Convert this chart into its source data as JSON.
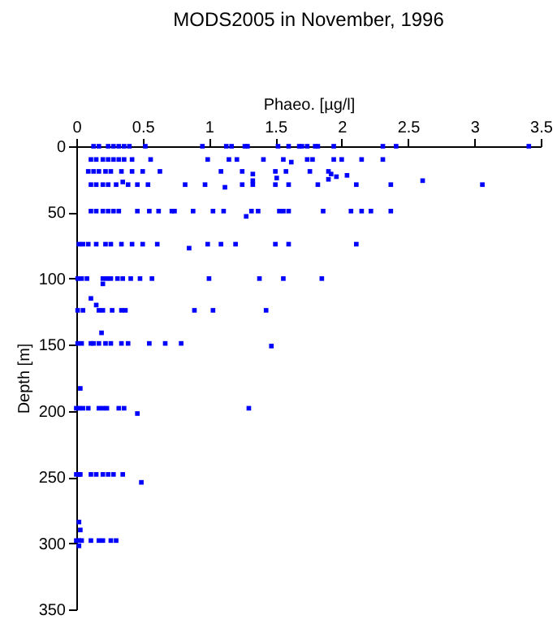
{
  "chart_data": {
    "type": "scatter",
    "title": "MODS2005 in November, 1996",
    "xlabel": "Phaeo. [µg/l]",
    "ylabel": "Depth [m]",
    "xlim": [
      0,
      3.5
    ],
    "xticks": [
      0,
      0.5,
      1,
      1.5,
      2,
      2.5,
      3,
      3.5
    ],
    "ylim": [
      350,
      0
    ],
    "yticks": [
      0,
      50,
      100,
      150,
      200,
      250,
      300,
      350
    ],
    "marker": "square",
    "grid": false,
    "series": [
      {
        "color": "#0000ff",
        "x": [
          0.13,
          0.17,
          0.24,
          0.28,
          0.32,
          0.36,
          0.4,
          0.52,
          0.95,
          1.13,
          1.17,
          1.27,
          1.29,
          1.52,
          1.6,
          1.68,
          1.7,
          1.74,
          1.8,
          1.82,
          1.94,
          2.31,
          2.41,
          3.41,
          0.11,
          0.15,
          0.2,
          0.24,
          0.28,
          0.32,
          0.36,
          0.42,
          0.56,
          0.99,
          1.15,
          1.21,
          1.41,
          1.56,
          1.62,
          1.74,
          1.78,
          1.94,
          2.0,
          2.15,
          2.31,
          0.09,
          0.13,
          0.17,
          0.22,
          0.26,
          0.34,
          0.42,
          0.5,
          0.63,
          1.09,
          1.25,
          1.33,
          1.5,
          1.58,
          1.76,
          1.9,
          1.92,
          1.96,
          2.04,
          2.61,
          3.06,
          1.33,
          1.51,
          1.9,
          0.11,
          0.15,
          0.2,
          0.24,
          0.3,
          0.35,
          0.39,
          0.46,
          0.54,
          0.82,
          0.97,
          1.12,
          1.25,
          1.33,
          1.5,
          1.6,
          1.82,
          2.11,
          2.37,
          0.11,
          0.15,
          0.2,
          0.24,
          0.28,
          0.32,
          0.46,
          0.55,
          0.62,
          0.72,
          0.74,
          0.88,
          1.03,
          1.11,
          1.28,
          1.32,
          1.37,
          1.53,
          1.56,
          1.6,
          1.86,
          2.07,
          2.15,
          2.22,
          2.37,
          0.02,
          0.05,
          0.09,
          0.15,
          0.22,
          0.26,
          0.34,
          0.42,
          0.5,
          0.61,
          0.85,
          0.99,
          1.09,
          1.2,
          1.5,
          1.6,
          2.11,
          0.01,
          0.04,
          0.08,
          0.2,
          0.23,
          0.26,
          0.31,
          0.35,
          0.41,
          0.48,
          0.57,
          1.0,
          1.38,
          1.56,
          1.85,
          0.2,
          0.11,
          0.15,
          0.01,
          0.05,
          0.17,
          0.2,
          0.27,
          0.34,
          0.37,
          0.89,
          1.03,
          1.43,
          0.19,
          0.01,
          0.04,
          0.11,
          0.13,
          0.17,
          0.22,
          0.26,
          0.34,
          0.39,
          0.55,
          0.67,
          0.79,
          1.47,
          0.03,
          0,
          0.02,
          0.05,
          0.09,
          0.17,
          0.2,
          0.23,
          0.32,
          0.36,
          0.46,
          1.3,
          0,
          0.02,
          0.03,
          0.11,
          0.15,
          0.2,
          0.24,
          0.28,
          0.35,
          0.49,
          0.02,
          0.03,
          0,
          0.02,
          0.04,
          0.11,
          0.17,
          0.2,
          0.26,
          0.3,
          0.02
        ],
        "values": [
          0,
          0,
          0,
          0,
          0,
          0,
          0,
          0,
          0,
          0,
          0,
          0,
          0,
          0,
          0,
          0,
          0,
          0,
          0,
          0,
          0,
          0,
          0,
          0,
          10,
          10,
          10,
          10,
          10,
          10,
          10,
          10,
          10,
          10,
          10,
          10,
          10,
          10,
          12,
          10,
          10,
          10,
          10,
          10,
          10,
          19,
          19,
          19,
          19,
          19,
          19,
          19,
          19,
          19,
          19,
          19,
          21,
          19,
          19,
          19,
          19,
          21,
          23,
          22,
          26,
          29,
          26,
          24,
          25,
          29,
          29,
          29,
          29,
          29,
          27,
          29,
          29,
          29,
          29,
          29,
          31,
          29,
          29,
          29,
          29,
          29,
          29,
          29,
          49,
          49,
          49,
          49,
          49,
          49,
          49,
          49,
          49,
          49,
          49,
          49,
          49,
          49,
          53,
          49,
          49,
          49,
          49,
          49,
          49,
          49,
          49,
          49,
          49,
          74,
          74,
          74,
          74,
          74,
          74,
          74,
          74,
          74,
          74,
          77,
          74,
          74,
          74,
          74,
          74,
          74,
          100,
          100,
          100,
          100,
          100,
          100,
          100,
          100,
          100,
          100,
          100,
          100,
          100,
          100,
          100,
          104,
          115,
          120,
          124,
          124,
          124,
          124,
          124,
          124,
          124,
          124,
          124,
          124,
          141,
          149,
          149,
          149,
          149,
          149,
          149,
          149,
          149,
          149,
          149,
          149,
          149,
          151,
          183,
          198,
          198,
          198,
          198,
          198,
          198,
          198,
          198,
          198,
          202,
          198,
          248,
          248,
          248,
          248,
          248,
          248,
          248,
          248,
          248,
          254,
          284,
          290,
          298,
          298,
          298,
          298,
          298,
          298,
          298,
          298,
          302
        ]
      }
    ]
  }
}
